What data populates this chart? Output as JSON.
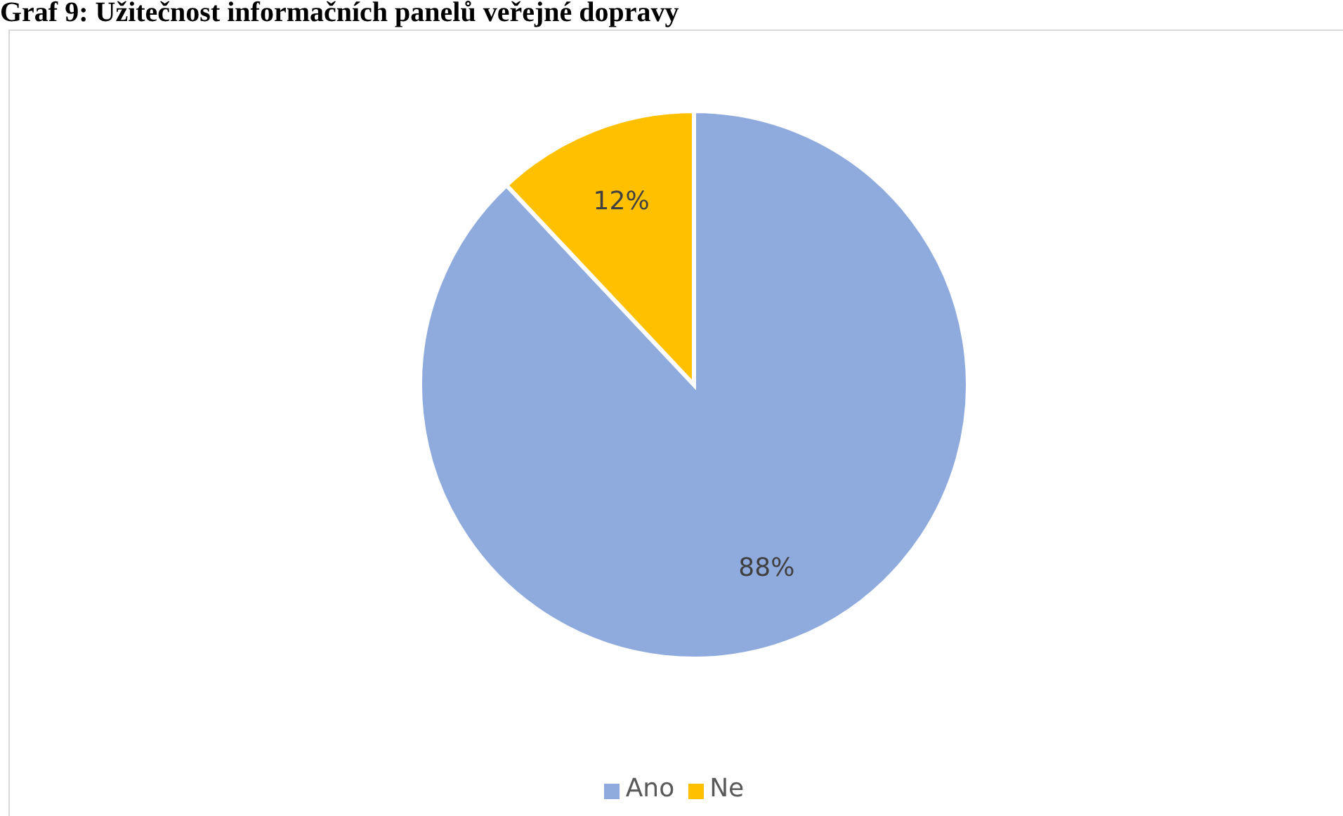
{
  "chart_data": {
    "type": "pie",
    "title": "Graf 9: Užitečnost informačních panelů veřejné dopravy",
    "categories": [
      "Ano",
      "Ne"
    ],
    "values": [
      88,
      12
    ],
    "colors": [
      "#8faadc",
      "#ffc000"
    ],
    "value_labels": [
      "88%",
      "12%"
    ],
    "legend": "bottom"
  }
}
